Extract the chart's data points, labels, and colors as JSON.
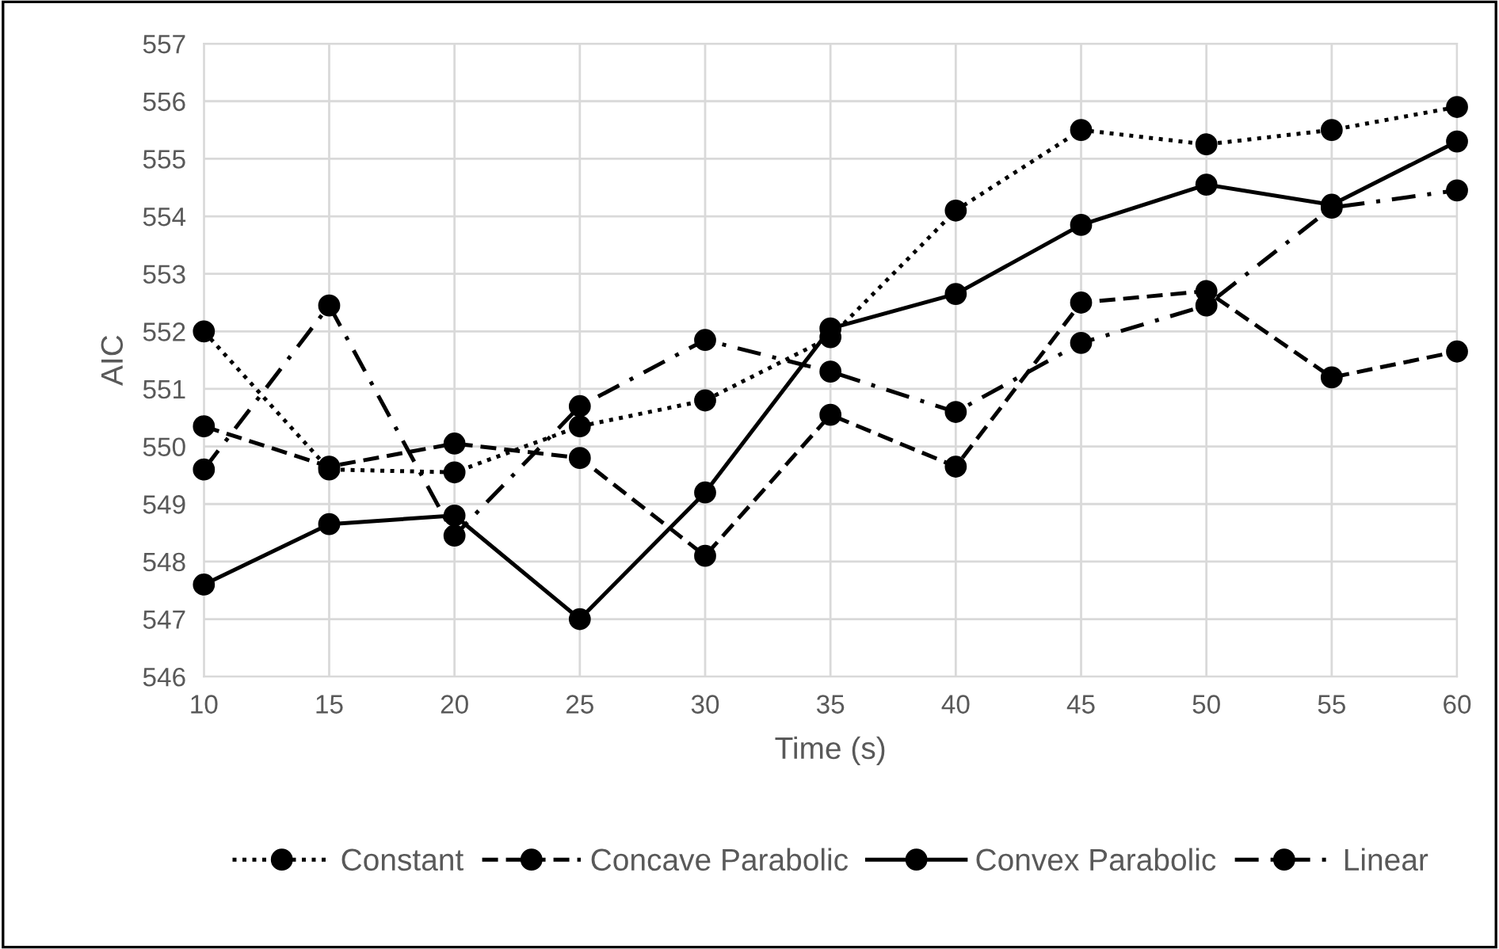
{
  "chart_data": {
    "type": "line",
    "xlabel": "Time (s)",
    "ylabel": "AIC",
    "x": [
      10,
      15,
      20,
      25,
      30,
      35,
      40,
      45,
      50,
      55,
      60
    ],
    "xlim": [
      10,
      60
    ],
    "xticks": [
      10,
      15,
      20,
      25,
      30,
      35,
      40,
      45,
      50,
      55,
      60
    ],
    "ylim": [
      546,
      557
    ],
    "yticks": [
      546,
      547,
      548,
      549,
      550,
      551,
      552,
      553,
      554,
      555,
      556,
      557
    ],
    "grid": true,
    "legend": "bottom",
    "marker": "circle",
    "series": [
      {
        "name": "Constant",
        "color": "#000000",
        "line_style": "dotted",
        "values": [
          552.0,
          549.6,
          549.55,
          550.35,
          550.8,
          551.9,
          554.1,
          555.5,
          555.25,
          555.5,
          555.9
        ]
      },
      {
        "name": "Concave Parabolic",
        "color": "#000000",
        "line_style": "dashed",
        "values": [
          550.35,
          549.65,
          550.05,
          549.8,
          548.1,
          550.55,
          549.65,
          552.5,
          552.7,
          551.2,
          551.65
        ]
      },
      {
        "name": "Convex Parabolic",
        "color": "#000000",
        "line_style": "solid",
        "values": [
          547.6,
          548.65,
          548.8,
          547.0,
          549.2,
          552.05,
          552.65,
          553.85,
          554.55,
          554.2,
          555.3
        ]
      },
      {
        "name": "Linear",
        "color": "#000000",
        "line_style": "dashdot",
        "values": [
          549.6,
          552.45,
          548.45,
          550.7,
          551.85,
          551.3,
          550.6,
          551.8,
          552.45,
          554.15,
          554.45
        ]
      }
    ]
  }
}
